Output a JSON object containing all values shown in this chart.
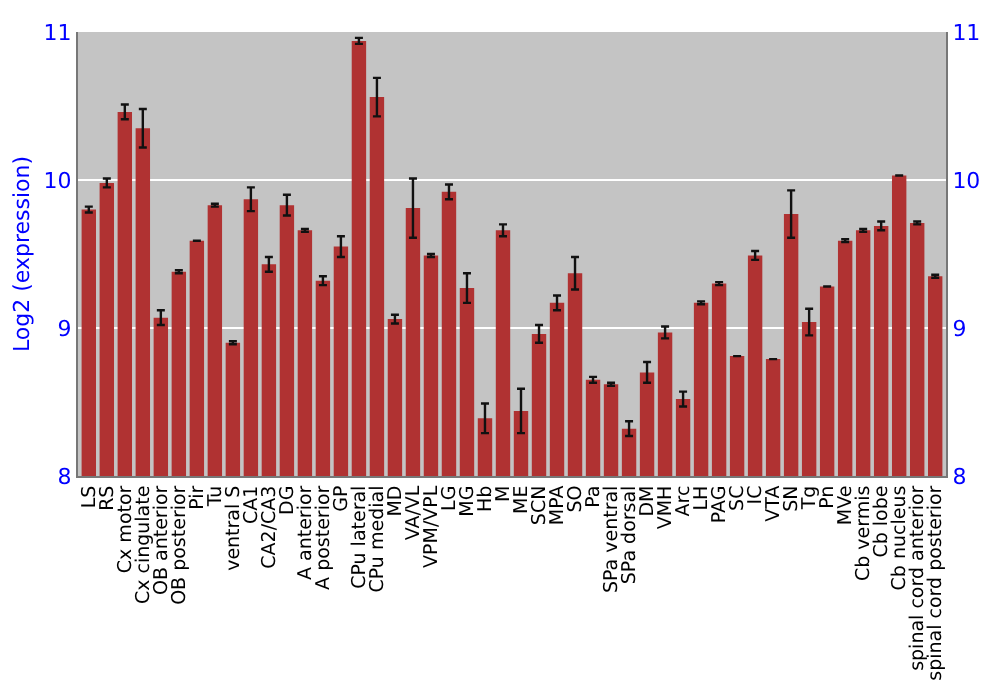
{
  "chart_data": {
    "type": "bar",
    "ylabel": "Log2 (expression)",
    "categories": [
      "LS",
      "RS",
      "Cx motor",
      "Cx cingulate",
      "OB anterior",
      "OB posterior",
      "Pir",
      "Tu",
      "ventral S",
      "CA1",
      "CA2/CA3",
      "DG",
      "A anterior",
      "A posterior",
      "GP",
      "CPu lateral",
      "CPu medial",
      "MD",
      "VA/VL",
      "VPM/VPL",
      "LG",
      "MG",
      "Hb",
      "M",
      "ME",
      "SCN",
      "MPA",
      "SO",
      "Pa",
      "SPa ventral",
      "SPa dorsal",
      "DM",
      "VMH",
      "Arc",
      "LH",
      "PAG",
      "SC",
      "IC",
      "VTA",
      "SN",
      "Tg",
      "Pn",
      "MVe",
      "Cb vermis",
      "Cb lobe",
      "Cb nucleus",
      "spinal cord anterior",
      "spinal cord posterior"
    ],
    "values": [
      9.8,
      9.98,
      10.46,
      10.35,
      9.07,
      9.38,
      9.59,
      9.83,
      8.9,
      9.87,
      9.43,
      9.83,
      9.66,
      9.32,
      9.55,
      10.94,
      10.56,
      9.06,
      9.81,
      9.49,
      9.92,
      9.27,
      8.39,
      9.66,
      8.44,
      8.96,
      9.17,
      9.37,
      8.65,
      8.62,
      8.32,
      8.7,
      8.97,
      8.52,
      9.17,
      9.3,
      8.81,
      9.49,
      8.79,
      9.77,
      9.04,
      9.28,
      9.59,
      9.66,
      9.69,
      10.03,
      9.71,
      9.35
    ],
    "errors": [
      0.02,
      0.03,
      0.05,
      0.13,
      0.05,
      0.01,
      null,
      0.01,
      0.01,
      0.08,
      0.05,
      0.07,
      0.01,
      0.03,
      0.07,
      0.02,
      0.13,
      0.03,
      0.2,
      0.01,
      0.05,
      0.1,
      0.1,
      0.04,
      0.15,
      0.06,
      0.05,
      0.11,
      0.02,
      0.01,
      0.05,
      0.07,
      0.04,
      0.05,
      0.01,
      0.01,
      null,
      0.03,
      null,
      0.16,
      0.09,
      null,
      0.01,
      0.01,
      0.03,
      null,
      0.01,
      0.01
    ],
    "color": "#b03232",
    "ylim": [
      8,
      11
    ],
    "yticks": [
      8,
      9,
      10,
      11
    ],
    "y2lim": [
      8,
      11
    ],
    "y2ticks": [
      8,
      9,
      10,
      11
    ],
    "grid": "y"
  }
}
